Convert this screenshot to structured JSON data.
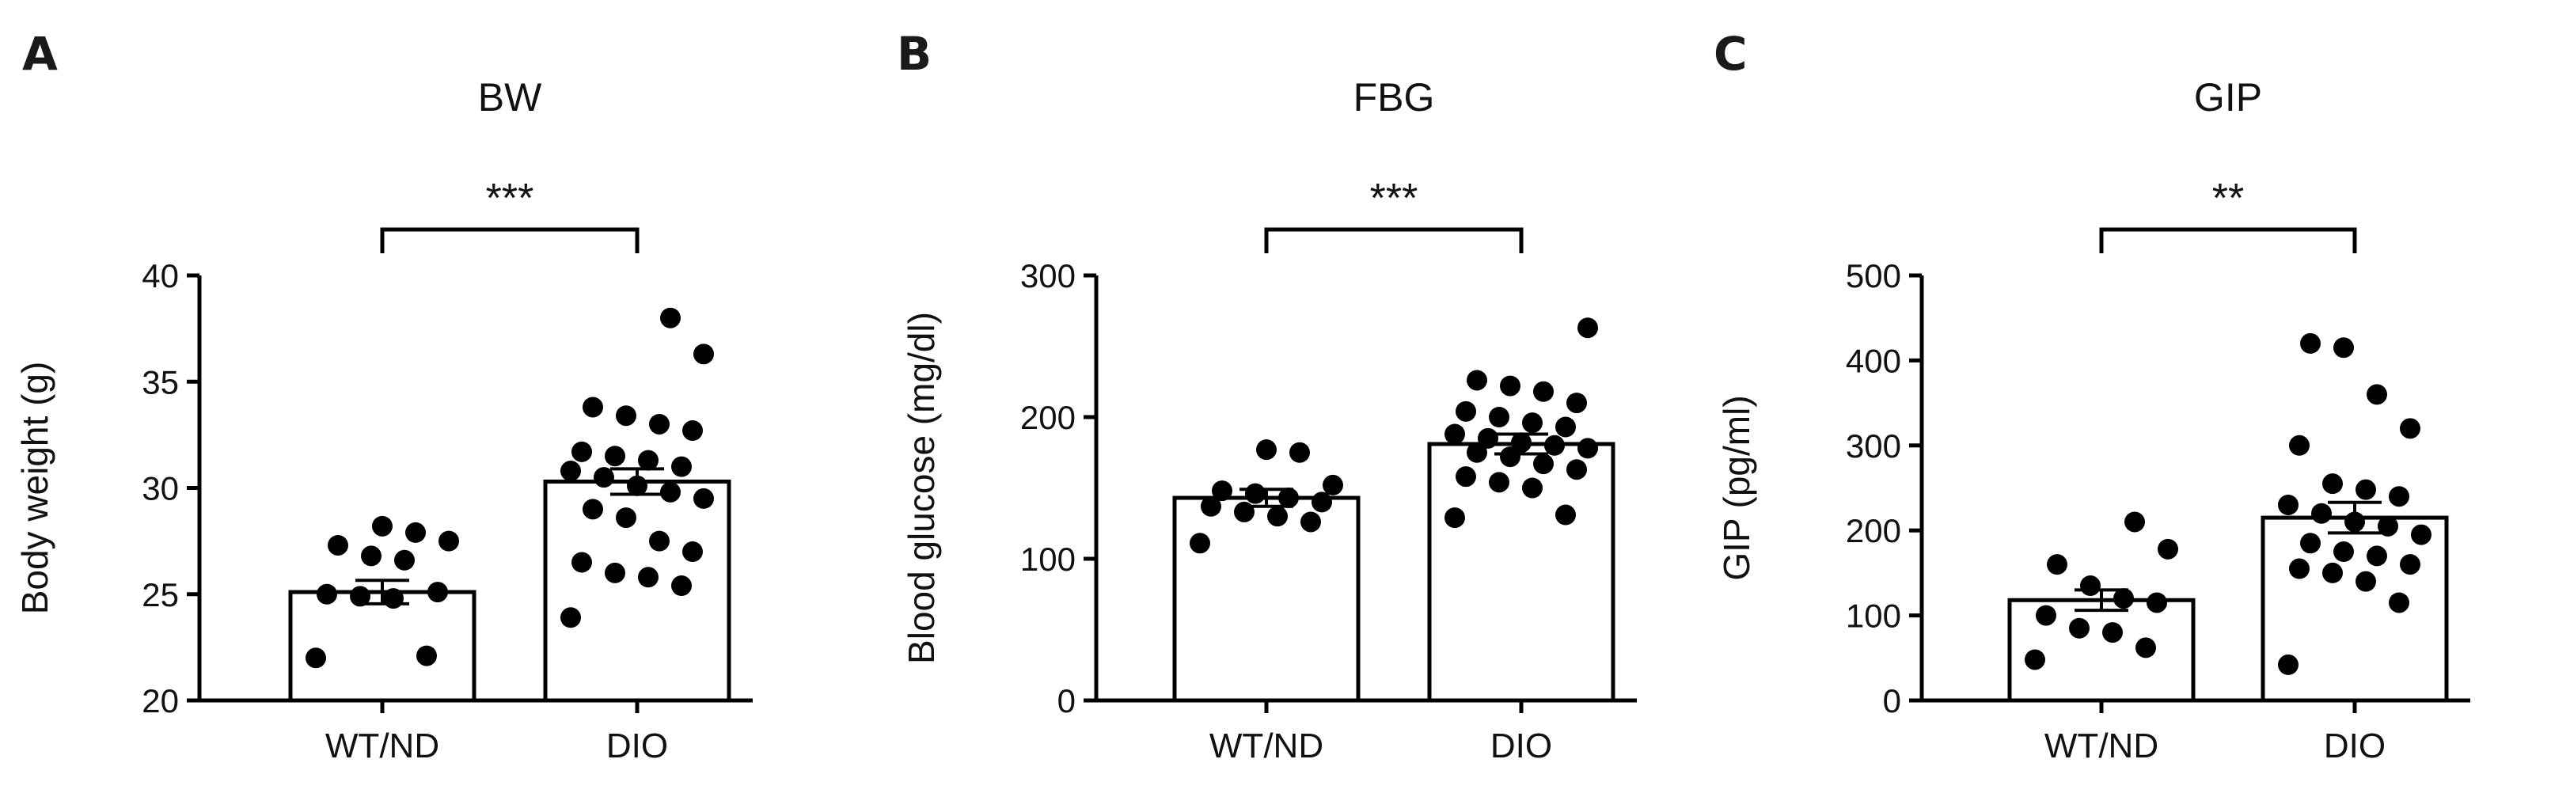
{
  "chart_data": [
    {
      "type": "bar",
      "panel": "A",
      "title": "BW",
      "xlabel": "",
      "ylabel": "Body weight (g)",
      "ylim": [
        20,
        40
      ],
      "yticks": [
        20,
        25,
        30,
        35,
        40
      ],
      "ytick_labels": [
        "20",
        "25",
        "30",
        "35",
        "40"
      ],
      "categories": [
        "WT/ND",
        "DIO"
      ],
      "values": [
        25.1,
        30.3
      ],
      "sem": [
        0.55,
        0.6
      ],
      "significance": "***",
      "points": [
        [
          22.0,
          22.1,
          24.8,
          24.9,
          25.0,
          25.1,
          26.6,
          26.8,
          27.3,
          27.5,
          27.9,
          28.2
        ],
        [
          23.9,
          25.4,
          25.8,
          26.0,
          26.5,
          27.0,
          27.5,
          28.6,
          29.0,
          29.5,
          29.8,
          30.1,
          30.5,
          30.8,
          31.0,
          31.3,
          31.5,
          31.7,
          32.7,
          33.0,
          33.4,
          33.8,
          36.3,
          38.0
        ]
      ]
    },
    {
      "type": "bar",
      "panel": "B",
      "title": "FBG",
      "xlabel": "",
      "ylabel": "Blood glucose (mg/dl)",
      "ylim": [
        0,
        300
      ],
      "yticks": [
        0,
        100,
        200,
        300
      ],
      "ytick_labels": [
        "0",
        "100",
        "200",
        "300"
      ],
      "categories": [
        "WT/ND",
        "DIO"
      ],
      "values": [
        143,
        181
      ],
      "sem": [
        6,
        7
      ],
      "significance": "***",
      "points": [
        [
          111,
          126,
          130,
          133,
          137,
          140,
          143,
          146,
          148,
          152,
          175,
          177
        ],
        [
          129,
          131,
          150,
          154,
          158,
          163,
          167,
          172,
          175,
          178,
          180,
          182,
          185,
          188,
          193,
          196,
          200,
          204,
          210,
          218,
          222,
          226,
          263
        ]
      ]
    },
    {
      "type": "bar",
      "panel": "C",
      "title": "GIP",
      "xlabel": "",
      "ylabel": "GIP (pg/ml)",
      "ylim": [
        0,
        500
      ],
      "yticks": [
        0,
        100,
        200,
        300,
        400,
        500
      ],
      "ytick_labels": [
        "0",
        "100",
        "200",
        "300",
        "400",
        "500"
      ],
      "categories": [
        "WT/ND",
        "DIO"
      ],
      "values": [
        118,
        215
      ],
      "sem": [
        12,
        18
      ],
      "significance": "**",
      "points": [
        [
          48,
          62,
          80,
          85,
          100,
          115,
          120,
          135,
          160,
          178,
          210
        ],
        [
          42,
          115,
          140,
          150,
          155,
          160,
          170,
          175,
          185,
          195,
          205,
          210,
          220,
          230,
          240,
          248,
          255,
          300,
          320,
          360,
          415,
          420
        ]
      ]
    }
  ]
}
